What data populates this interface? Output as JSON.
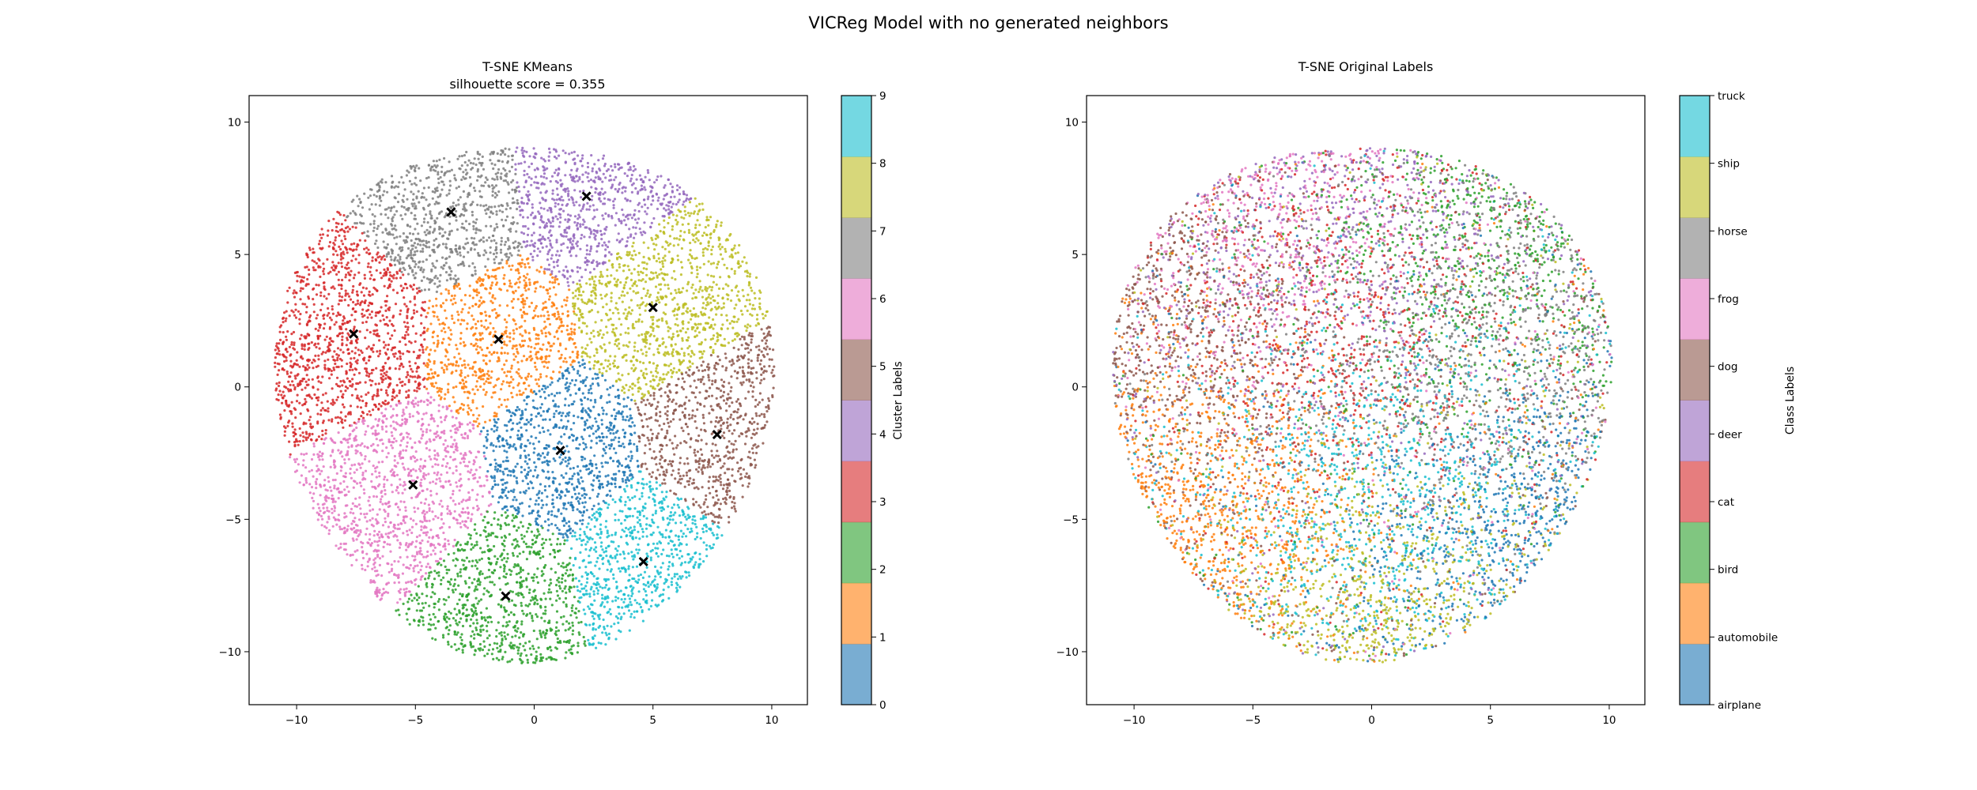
{
  "figure": {
    "suptitle": "VICReg Model with no generated neighbors"
  },
  "chart_data": [
    {
      "type": "scatter",
      "title": "T-SNE KMeans",
      "subtitle": "silhouette score = 0.355",
      "xlabel": "",
      "ylabel": "",
      "xlim": [
        -12,
        11.5
      ],
      "ylim": [
        -12,
        11
      ],
      "xticks": [
        -10,
        -5,
        0,
        5,
        10
      ],
      "yticks": [
        -10,
        -5,
        0,
        5,
        10
      ],
      "grid": false,
      "colorbar": {
        "label": "Cluster Labels",
        "ticks": [
          "0",
          "1",
          "2",
          "3",
          "4",
          "5",
          "6",
          "7",
          "8",
          "9"
        ]
      },
      "palette": [
        "#1f77b4",
        "#ff7f0e",
        "#2ca02c",
        "#d62728",
        "#9467bd",
        "#8c564b",
        "#e377c2",
        "#7f7f7f",
        "#bcbd22",
        "#17becf"
      ],
      "centroids": [
        {
          "cluster": 0,
          "x": 1.1,
          "y": -2.4
        },
        {
          "cluster": 1,
          "x": -1.5,
          "y": 1.8
        },
        {
          "cluster": 2,
          "x": -1.2,
          "y": -7.9
        },
        {
          "cluster": 3,
          "x": -7.6,
          "y": 2.0
        },
        {
          "cluster": 4,
          "x": 2.2,
          "y": 7.2
        },
        {
          "cluster": 5,
          "x": 7.7,
          "y": -1.8
        },
        {
          "cluster": 6,
          "x": -5.1,
          "y": -3.7
        },
        {
          "cluster": 7,
          "x": -3.5,
          "y": 6.6
        },
        {
          "cluster": 8,
          "x": 5.0,
          "y": 3.0
        },
        {
          "cluster": 9,
          "x": 4.6,
          "y": -6.6
        }
      ]
    },
    {
      "type": "scatter",
      "title": "T-SNE Original Labels",
      "xlabel": "",
      "ylabel": "",
      "xlim": [
        -12,
        11.5
      ],
      "ylim": [
        -12,
        11
      ],
      "xticks": [
        -10,
        -5,
        0,
        5,
        10
      ],
      "yticks": [
        -10,
        -5,
        0,
        5,
        10
      ],
      "grid": false,
      "colorbar": {
        "label": "Class Labels",
        "ticks": [
          "airplane",
          "automobile",
          "bird",
          "cat",
          "deer",
          "dog",
          "frog",
          "horse",
          "ship",
          "truck"
        ]
      },
      "palette": [
        "#1f77b4",
        "#ff7f0e",
        "#2ca02c",
        "#d62728",
        "#9467bd",
        "#8c564b",
        "#e377c2",
        "#7f7f7f",
        "#bcbd22",
        "#17becf"
      ],
      "class_centers": [
        {
          "class": "airplane",
          "x": 5.5,
          "y": -6.5
        },
        {
          "class": "automobile",
          "x": -6.5,
          "y": -4.0
        },
        {
          "class": "bird",
          "x": 3.0,
          "y": 5.0
        },
        {
          "class": "cat",
          "x": -1.0,
          "y": 3.0
        },
        {
          "class": "deer",
          "x": -1.0,
          "y": 6.0
        },
        {
          "class": "dog",
          "x": -7.0,
          "y": 2.5
        },
        {
          "class": "frog",
          "x": -4.0,
          "y": 6.5
        },
        {
          "class": "horse",
          "x": 3.0,
          "y": 2.0
        },
        {
          "class": "ship",
          "x": 1.0,
          "y": -8.5
        },
        {
          "class": "truck",
          "x": 0.5,
          "y": -3.5
        }
      ]
    }
  ]
}
